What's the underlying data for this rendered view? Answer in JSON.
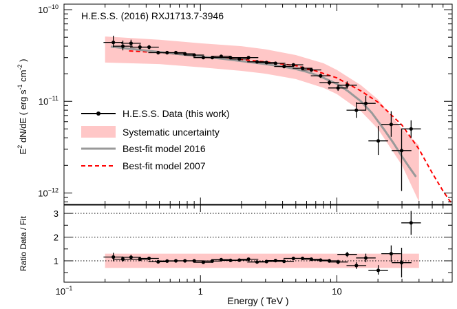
{
  "chart_data": [
    {
      "panel": "spectrum",
      "type": "scatter",
      "title": "H.E.S.S. (2016) RXJ1713.7-3946",
      "xlabel": "",
      "ylabel_parts": {
        "main": "E",
        "sup1": "2",
        "mid": " dN/dE ( erg s",
        "sup2": "-1",
        "mid2": " cm",
        "sup3": "-2",
        "end": " )"
      },
      "x_scale": "log",
      "y_scale": "log",
      "xlim": [
        0.1,
        70
      ],
      "ylim": [
        7.5e-13,
        1.15e-10
      ],
      "y_ticks": [
        {
          "value": 1e-12,
          "base": "10",
          "exp": "−12"
        },
        {
          "value": 1e-11,
          "base": "10",
          "exp": "−11"
        },
        {
          "value": 1e-10,
          "base": "10",
          "exp": "−10"
        }
      ],
      "legend_position": "left",
      "legend": [
        {
          "label": "H.E.S.S. Data (this work)",
          "kind": "marker-line",
          "color": "#000000"
        },
        {
          "label": "Systematic uncertainty",
          "kind": "band",
          "color": "#ffc7c7"
        },
        {
          "label": "Best-fit model 2016",
          "kind": "line",
          "color": "#999999"
        },
        {
          "label": "Best-fit model 2007",
          "kind": "dashed",
          "color": "#ff0000"
        }
      ],
      "data_points": [
        {
          "x": 0.23,
          "y": 4.4e-11,
          "ylo": 3.9e-11,
          "yhi": 5.2e-11
        },
        {
          "x": 0.27,
          "y": 4e-11,
          "ylo": 3.6e-11,
          "yhi": 4.6e-11
        },
        {
          "x": 0.31,
          "y": 4.3e-11,
          "ylo": 3.95e-11,
          "yhi": 4.7e-11
        },
        {
          "x": 0.36,
          "y": 3.9e-11,
          "ylo": 3.65e-11,
          "yhi": 4.2e-11
        },
        {
          "x": 0.42,
          "y": 3.9e-11,
          "ylo": 3.7e-11,
          "yhi": 4.1e-11
        },
        {
          "x": 0.49,
          "y": 3.4e-11,
          "ylo": 3.25e-11,
          "yhi": 3.55e-11
        },
        {
          "x": 0.57,
          "y": 3.4e-11,
          "ylo": 3.25e-11,
          "yhi": 3.55e-11
        },
        {
          "x": 0.66,
          "y": 3.4e-11,
          "ylo": 3.3e-11,
          "yhi": 3.5e-11
        },
        {
          "x": 0.77,
          "y": 3.3e-11,
          "ylo": 3.2e-11,
          "yhi": 3.4e-11
        },
        {
          "x": 0.9,
          "y": 3.2e-11,
          "ylo": 3.1e-11,
          "yhi": 3.3e-11
        },
        {
          "x": 1.05,
          "y": 3e-11,
          "ylo": 2.9e-11,
          "yhi": 3.1e-11
        },
        {
          "x": 1.22,
          "y": 3e-11,
          "ylo": 2.9e-11,
          "yhi": 3.1e-11
        },
        {
          "x": 1.42,
          "y": 3.1e-11,
          "ylo": 3e-11,
          "yhi": 3.2e-11
        },
        {
          "x": 1.66,
          "y": 3e-11,
          "ylo": 2.9e-11,
          "yhi": 3.1e-11
        },
        {
          "x": 1.93,
          "y": 2.9e-11,
          "ylo": 2.8e-11,
          "yhi": 3e-11
        },
        {
          "x": 2.25,
          "y": 3e-11,
          "ylo": 2.9e-11,
          "yhi": 3.1e-11
        },
        {
          "x": 2.6,
          "y": 2.7e-11,
          "ylo": 2.6e-11,
          "yhi": 2.8e-11
        },
        {
          "x": 3.05,
          "y": 2.65e-11,
          "ylo": 2.55e-11,
          "yhi": 2.75e-11
        },
        {
          "x": 3.55,
          "y": 2.6e-11,
          "ylo": 2.5e-11,
          "yhi": 2.7e-11
        },
        {
          "x": 4.1,
          "y": 2.4e-11,
          "ylo": 2.3e-11,
          "yhi": 2.5e-11
        },
        {
          "x": 4.8,
          "y": 2.5e-11,
          "ylo": 2.4e-11,
          "yhi": 2.6e-11
        },
        {
          "x": 5.6,
          "y": 2.3e-11,
          "ylo": 2.2e-11,
          "yhi": 2.4e-11
        },
        {
          "x": 6.5,
          "y": 2.2e-11,
          "ylo": 2.1e-11,
          "yhi": 2.3e-11
        },
        {
          "x": 7.6,
          "y": 1.9e-11,
          "ylo": 1.8e-11,
          "yhi": 2e-11
        },
        {
          "x": 8.8,
          "y": 1.6e-11,
          "ylo": 1.5e-11,
          "yhi": 1.7e-11
        },
        {
          "x": 10.2,
          "y": 1.4e-11,
          "ylo": 1.3e-11,
          "yhi": 1.5e-11
        },
        {
          "x": 11.9,
          "y": 1.5e-11,
          "ylo": 1.38e-11,
          "yhi": 1.65e-11
        },
        {
          "x": 13.9,
          "y": 8e-12,
          "ylo": 6.6e-12,
          "yhi": 9.8e-12
        },
        {
          "x": 16.3,
          "y": 9.5e-12,
          "ylo": 8e-12,
          "yhi": 1.15e-11
        },
        {
          "x": 20.1,
          "y": 3.7e-12,
          "ylo": 2.6e-12,
          "yhi": 5.4e-12
        },
        {
          "x": 25.0,
          "y": 5.6e-12,
          "ylo": 4.1e-12,
          "yhi": 7.8e-12
        },
        {
          "x": 29.8,
          "y": 2.9e-12,
          "ylo": 1.05e-12,
          "yhi": 5e-12
        },
        {
          "x": 35.0,
          "y": 5e-12,
          "ylo": 4e-12,
          "yhi": 6.2e-12
        }
      ],
      "model_2016": {
        "x": [
          0.22,
          0.3,
          0.5,
          0.8,
          1.0,
          1.5,
          2.0,
          3.0,
          4.0,
          5.0,
          6.0,
          7.0,
          8.0,
          10.0,
          12.0,
          15.0,
          18.0,
          22.0,
          26.0,
          30.0,
          34.0,
          38.0
        ],
        "y": [
          3.95e-11,
          3.75e-11,
          3.45e-11,
          3.2e-11,
          3.1e-11,
          2.9e-11,
          2.75e-11,
          2.55e-11,
          2.4e-11,
          2.25e-11,
          2.1e-11,
          1.95e-11,
          1.8e-11,
          1.55e-11,
          1.3e-11,
          1e-11,
          7.5e-12,
          5e-12,
          3.5e-12,
          2.5e-12,
          1.9e-12,
          1.5e-12
        ]
      },
      "model_2007": {
        "x": [
          0.3,
          0.5,
          1.0,
          2.0,
          3.0,
          4.0,
          5.0,
          7.0,
          10.0,
          15.0,
          20.0,
          30.0,
          40.0,
          50.0,
          60.0,
          70.0
        ],
        "y": [
          3.55e-11,
          3.4e-11,
          3.1e-11,
          2.85e-11,
          2.7e-11,
          2.55e-11,
          2.45e-11,
          2.15e-11,
          1.8e-11,
          1.3e-11,
          9.8e-12,
          5.5e-12,
          3e-12,
          1.65e-12,
          1.05e-12,
          7.5e-13
        ]
      },
      "systematic_band": {
        "x": [
          0.2,
          0.5,
          1.0,
          2.0,
          3.0,
          5.0,
          8.0,
          10.0,
          15.0,
          20.0,
          30.0,
          40.0
        ],
        "upper": [
          5.1e-11,
          4.7e-11,
          4.3e-11,
          4e-11,
          3.7e-11,
          3.2e-11,
          2.6e-11,
          2.2e-11,
          1.5e-11,
          1.05e-11,
          5e-12,
          3.3e-12
        ],
        "lower": [
          2.65e-11,
          2.55e-11,
          2.35e-11,
          2.15e-11,
          2e-11,
          1.75e-11,
          1.4e-11,
          1.2e-11,
          7.8e-12,
          5e-12,
          2e-12,
          8e-13
        ]
      }
    },
    {
      "panel": "ratio",
      "type": "scatter",
      "xlabel": "Energy ( TeV )",
      "ylabel": "Ratio Data / Fit",
      "x_scale": "log",
      "xlim": [
        0.1,
        70
      ],
      "ylim": [
        0.1,
        3.35
      ],
      "x_ticks": [
        {
          "value": 0.1,
          "base": "10",
          "exp": "−1"
        },
        {
          "value": 1,
          "text": "1"
        },
        {
          "value": 10,
          "text": "10"
        }
      ],
      "y_ticks": [
        1,
        2,
        3
      ],
      "reference_lines": [
        1,
        2,
        3
      ],
      "band": {
        "xmin": 0.2,
        "xmax": 40,
        "ymin": 0.7,
        "ymax": 1.3
      },
      "data_points": [
        {
          "x": 0.23,
          "y": 1.16,
          "ylo": 0.98,
          "yhi": 1.34
        },
        {
          "x": 0.27,
          "y": 1.07,
          "ylo": 0.96,
          "yhi": 1.18
        },
        {
          "x": 0.31,
          "y": 1.15,
          "ylo": 1.05,
          "yhi": 1.25
        },
        {
          "x": 0.36,
          "y": 1.07,
          "ylo": 0.99,
          "yhi": 1.15
        },
        {
          "x": 0.42,
          "y": 1.1,
          "ylo": 1.04,
          "yhi": 1.16
        },
        {
          "x": 0.49,
          "y": 0.96,
          "ylo": 0.91,
          "yhi": 1.01
        },
        {
          "x": 0.57,
          "y": 0.99,
          "ylo": 0.94,
          "yhi": 1.04
        },
        {
          "x": 0.66,
          "y": 1.0,
          "ylo": 0.96,
          "yhi": 1.04
        },
        {
          "x": 0.77,
          "y": 1.0,
          "ylo": 0.96,
          "yhi": 1.04
        },
        {
          "x": 0.9,
          "y": 1.0,
          "ylo": 0.96,
          "yhi": 1.04
        },
        {
          "x": 1.05,
          "y": 0.94,
          "ylo": 0.9,
          "yhi": 0.98
        },
        {
          "x": 1.22,
          "y": 0.99,
          "ylo": 0.95,
          "yhi": 1.03
        },
        {
          "x": 1.42,
          "y": 1.05,
          "ylo": 1.01,
          "yhi": 1.09
        },
        {
          "x": 1.66,
          "y": 1.02,
          "ylo": 0.98,
          "yhi": 1.06
        },
        {
          "x": 1.93,
          "y": 1.03,
          "ylo": 0.99,
          "yhi": 1.07
        },
        {
          "x": 2.25,
          "y": 1.07,
          "ylo": 1.02,
          "yhi": 1.12
        },
        {
          "x": 2.6,
          "y": 0.95,
          "ylo": 0.9,
          "yhi": 1.0
        },
        {
          "x": 3.05,
          "y": 0.97,
          "ylo": 0.92,
          "yhi": 1.02
        },
        {
          "x": 3.55,
          "y": 1.01,
          "ylo": 0.96,
          "yhi": 1.06
        },
        {
          "x": 4.1,
          "y": 0.98,
          "ylo": 0.93,
          "yhi": 1.03
        },
        {
          "x": 4.8,
          "y": 1.1,
          "ylo": 1.05,
          "yhi": 1.15
        },
        {
          "x": 5.6,
          "y": 1.1,
          "ylo": 1.04,
          "yhi": 1.16
        },
        {
          "x": 6.5,
          "y": 1.07,
          "ylo": 1.01,
          "yhi": 1.13
        },
        {
          "x": 7.6,
          "y": 1.03,
          "ylo": 0.96,
          "yhi": 1.1
        },
        {
          "x": 8.8,
          "y": 1.0,
          "ylo": 0.92,
          "yhi": 1.08
        },
        {
          "x": 10.2,
          "y": 0.95,
          "ylo": 0.86,
          "yhi": 1.04
        },
        {
          "x": 11.9,
          "y": 1.27,
          "ylo": 1.16,
          "yhi": 1.38
        },
        {
          "x": 13.9,
          "y": 0.8,
          "ylo": 0.66,
          "yhi": 0.94
        },
        {
          "x": 16.3,
          "y": 1.12,
          "ylo": 0.94,
          "yhi": 1.3
        },
        {
          "x": 20.1,
          "y": 0.6,
          "ylo": 0.42,
          "yhi": 0.82
        },
        {
          "x": 25.0,
          "y": 1.3,
          "ylo": 0.95,
          "yhi": 1.65
        },
        {
          "x": 29.8,
          "y": 0.92,
          "ylo": 0.3,
          "yhi": 1.55
        },
        {
          "x": 35.0,
          "y": 2.6,
          "ylo": 2.1,
          "yhi": 3.1
        }
      ]
    }
  ]
}
